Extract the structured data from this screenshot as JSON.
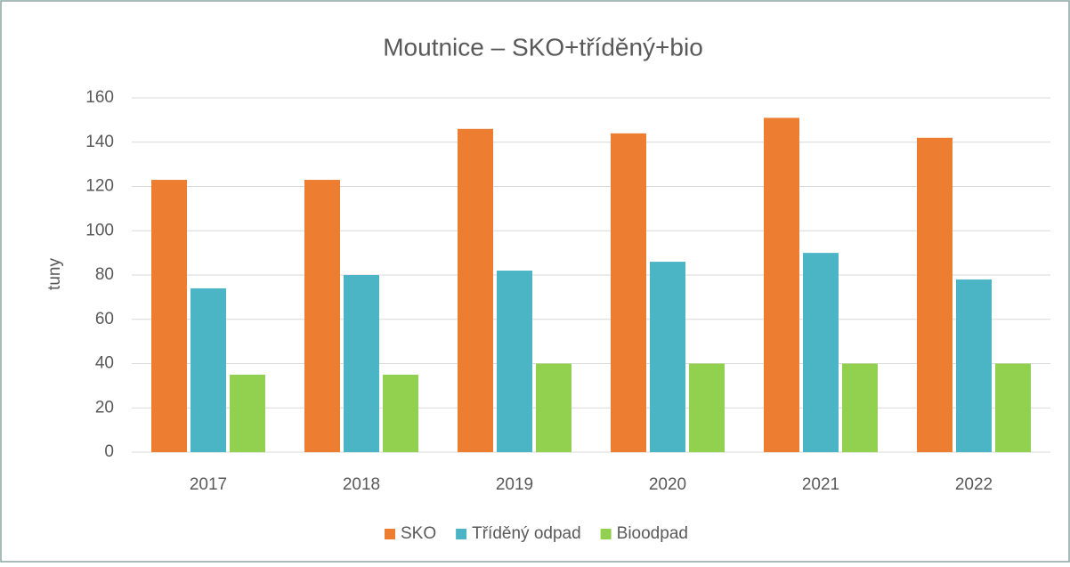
{
  "chart_data": {
    "type": "bar",
    "title": "Moutnice – SKO+tříděný+bio",
    "y_label": "tuny",
    "categories": [
      "2017",
      "2018",
      "2019",
      "2020",
      "2021",
      "2022"
    ],
    "series": [
      {
        "name": "SKO",
        "color": "#ed7d31",
        "values": [
          123,
          123,
          146,
          144,
          151,
          142
        ]
      },
      {
        "name": "Tříděný odpad",
        "color": "#4bb5c5",
        "values": [
          74,
          80,
          82,
          86,
          90,
          78
        ]
      },
      {
        "name": "Bioodpad",
        "color": "#92d050",
        "values": [
          35,
          35,
          40,
          40,
          40,
          40
        ]
      }
    ],
    "ylim": [
      0,
      160
    ],
    "yticks": [
      0,
      20,
      40,
      60,
      80,
      100,
      120,
      140,
      160
    ],
    "grid": true,
    "legend": "bottom"
  }
}
